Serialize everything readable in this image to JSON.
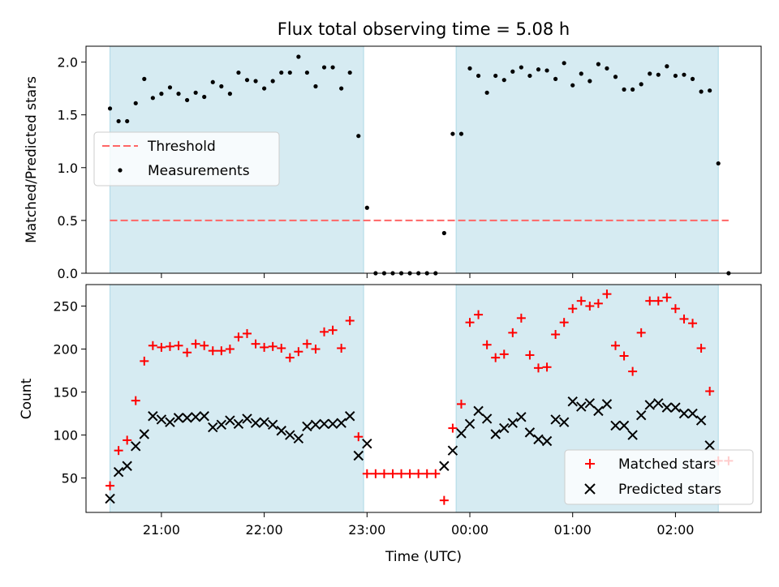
{
  "chart_data": [
    {
      "type": "scatter",
      "title": "Flux total observing time = 5.08 h",
      "xlabel": "",
      "ylabel": "Matched/Predicted stars",
      "xlim": [
        "20:16",
        "02:50"
      ],
      "ylim": [
        0,
        2.15
      ],
      "xticks": [
        "21:00",
        "22:00",
        "23:00",
        "00:00",
        "01:00",
        "02:00"
      ],
      "yticks": [
        "0.0",
        "0.5",
        "1.0",
        "1.5",
        "2.0"
      ],
      "shaded_intervals": [
        [
          "20:30",
          "22:58"
        ],
        [
          "23:52",
          "02:25"
        ]
      ],
      "threshold": {
        "name": "Threshold",
        "value": 0.5,
        "color": "#ff6666",
        "x_range": [
          "20:30",
          "02:31"
        ]
      },
      "series": [
        {
          "name": "Measurements",
          "color": "#000000",
          "points": [
            [
              "20:30",
              1.56
            ],
            [
              "20:35",
              1.44
            ],
            [
              "20:40",
              1.44
            ],
            [
              "20:45",
              1.61
            ],
            [
              "20:50",
              1.84
            ],
            [
              "20:55",
              1.66
            ],
            [
              "21:00",
              1.7
            ],
            [
              "21:05",
              1.76
            ],
            [
              "21:10",
              1.7
            ],
            [
              "21:15",
              1.64
            ],
            [
              "21:20",
              1.71
            ],
            [
              "21:25",
              1.67
            ],
            [
              "21:30",
              1.81
            ],
            [
              "21:35",
              1.77
            ],
            [
              "21:40",
              1.7
            ],
            [
              "21:45",
              1.9
            ],
            [
              "21:50",
              1.83
            ],
            [
              "21:55",
              1.82
            ],
            [
              "22:00",
              1.75
            ],
            [
              "22:05",
              1.82
            ],
            [
              "22:10",
              1.9
            ],
            [
              "22:15",
              1.9
            ],
            [
              "22:20",
              2.05
            ],
            [
              "22:25",
              1.9
            ],
            [
              "22:30",
              1.77
            ],
            [
              "22:35",
              1.95
            ],
            [
              "22:40",
              1.95
            ],
            [
              "22:45",
              1.75
            ],
            [
              "22:50",
              1.9
            ],
            [
              "22:55",
              1.3
            ],
            [
              "23:00",
              0.62
            ],
            [
              "23:05",
              0.0
            ],
            [
              "23:10",
              0.0
            ],
            [
              "23:15",
              0.0
            ],
            [
              "23:20",
              0.0
            ],
            [
              "23:25",
              0.0
            ],
            [
              "23:30",
              0.0
            ],
            [
              "23:35",
              0.0
            ],
            [
              "23:40",
              0.0
            ],
            [
              "23:45",
              0.38
            ],
            [
              "23:50",
              1.32
            ],
            [
              "23:55",
              1.32
            ],
            [
              "00:00",
              1.94
            ],
            [
              "00:05",
              1.87
            ],
            [
              "00:10",
              1.71
            ],
            [
              "00:15",
              1.87
            ],
            [
              "00:20",
              1.83
            ],
            [
              "00:25",
              1.91
            ],
            [
              "00:30",
              1.95
            ],
            [
              "00:35",
              1.87
            ],
            [
              "00:40",
              1.93
            ],
            [
              "00:45",
              1.92
            ],
            [
              "00:50",
              1.84
            ],
            [
              "00:55",
              1.99
            ],
            [
              "01:00",
              1.78
            ],
            [
              "01:05",
              1.89
            ],
            [
              "01:10",
              1.82
            ],
            [
              "01:15",
              1.98
            ],
            [
              "01:20",
              1.94
            ],
            [
              "01:25",
              1.86
            ],
            [
              "01:30",
              1.74
            ],
            [
              "01:35",
              1.74
            ],
            [
              "01:40",
              1.79
            ],
            [
              "01:45",
              1.89
            ],
            [
              "01:50",
              1.88
            ],
            [
              "01:55",
              1.96
            ],
            [
              "02:00",
              1.87
            ],
            [
              "02:05",
              1.88
            ],
            [
              "02:10",
              1.84
            ],
            [
              "02:15",
              1.72
            ],
            [
              "02:20",
              1.73
            ],
            [
              "02:25",
              1.04
            ],
            [
              "02:31",
              0.0
            ]
          ]
        }
      ],
      "legend": {
        "position": "center-left",
        "entries": [
          "Threshold",
          "Measurements"
        ]
      }
    },
    {
      "type": "scatter",
      "title": "",
      "xlabel": "Time (UTC)",
      "ylabel": "Count",
      "xlim": [
        "20:16",
        "02:50"
      ],
      "ylim": [
        10,
        275
      ],
      "xticks": [
        "21:00",
        "22:00",
        "23:00",
        "00:00",
        "01:00",
        "02:00"
      ],
      "yticks": [
        "50",
        "100",
        "150",
        "200",
        "250"
      ],
      "shaded_intervals": [
        [
          "20:30",
          "22:58"
        ],
        [
          "23:52",
          "02:25"
        ]
      ],
      "series": [
        {
          "name": "Matched stars",
          "color": "#ff0000",
          "marker": "plus",
          "points": [
            [
              "20:30",
              41
            ],
            [
              "20:35",
              82
            ],
            [
              "20:40",
              94
            ],
            [
              "20:45",
              140
            ],
            [
              "20:50",
              186
            ],
            [
              "20:55",
              204
            ],
            [
              "21:00",
              202
            ],
            [
              "21:05",
              203
            ],
            [
              "21:10",
              204
            ],
            [
              "21:15",
              196
            ],
            [
              "21:20",
              206
            ],
            [
              "21:25",
              204
            ],
            [
              "21:30",
              198
            ],
            [
              "21:35",
              198
            ],
            [
              "21:40",
              200
            ],
            [
              "21:45",
              214
            ],
            [
              "21:50",
              218
            ],
            [
              "21:55",
              206
            ],
            [
              "22:00",
              202
            ],
            [
              "22:05",
              203
            ],
            [
              "22:10",
              201
            ],
            [
              "22:15",
              190
            ],
            [
              "22:20",
              197
            ],
            [
              "22:25",
              206
            ],
            [
              "22:30",
              200
            ],
            [
              "22:35",
              220
            ],
            [
              "22:40",
              222
            ],
            [
              "22:45",
              201
            ],
            [
              "22:50",
              233
            ],
            [
              "22:55",
              98
            ],
            [
              "23:00",
              55
            ],
            [
              "23:05",
              55
            ],
            [
              "23:10",
              55
            ],
            [
              "23:15",
              55
            ],
            [
              "23:20",
              55
            ],
            [
              "23:25",
              55
            ],
            [
              "23:30",
              55
            ],
            [
              "23:35",
              55
            ],
            [
              "23:40",
              55
            ],
            [
              "23:45",
              24
            ],
            [
              "23:50",
              108
            ],
            [
              "23:55",
              136
            ],
            [
              "00:00",
              231
            ],
            [
              "00:05",
              240
            ],
            [
              "00:10",
              205
            ],
            [
              "00:15",
              190
            ],
            [
              "00:20",
              194
            ],
            [
              "00:25",
              219
            ],
            [
              "00:30",
              236
            ],
            [
              "00:35",
              193
            ],
            [
              "00:40",
              178
            ],
            [
              "00:45",
              179
            ],
            [
              "00:50",
              217
            ],
            [
              "00:55",
              231
            ],
            [
              "01:00",
              247
            ],
            [
              "01:05",
              256
            ],
            [
              "01:10",
              250
            ],
            [
              "01:15",
              253
            ],
            [
              "01:20",
              264
            ],
            [
              "01:25",
              204
            ],
            [
              "01:30",
              192
            ],
            [
              "01:35",
              174
            ],
            [
              "01:40",
              219
            ],
            [
              "01:45",
              256
            ],
            [
              "01:50",
              256
            ],
            [
              "01:55",
              260
            ],
            [
              "02:00",
              247
            ],
            [
              "02:05",
              235
            ],
            [
              "02:10",
              230
            ],
            [
              "02:15",
              201
            ],
            [
              "02:20",
              151
            ],
            [
              "02:25",
              70
            ],
            [
              "02:31",
              70
            ]
          ]
        },
        {
          "name": "Predicted stars",
          "color": "#000000",
          "marker": "x",
          "points": [
            [
              "20:30",
              26
            ],
            [
              "20:35",
              57
            ],
            [
              "20:40",
              64
            ],
            [
              "20:45",
              87
            ],
            [
              "20:50",
              101
            ],
            [
              "20:55",
              122
            ],
            [
              "21:00",
              118
            ],
            [
              "21:05",
              115
            ],
            [
              "21:10",
              120
            ],
            [
              "21:15",
              120
            ],
            [
              "21:20",
              121
            ],
            [
              "21:25",
              122
            ],
            [
              "21:30",
              109
            ],
            [
              "21:35",
              112
            ],
            [
              "21:40",
              117
            ],
            [
              "21:45",
              113
            ],
            [
              "21:50",
              119
            ],
            [
              "21:55",
              114
            ],
            [
              "22:00",
              115
            ],
            [
              "22:05",
              112
            ],
            [
              "22:10",
              105
            ],
            [
              "22:15",
              100
            ],
            [
              "22:20",
              96
            ],
            [
              "22:25",
              110
            ],
            [
              "22:30",
              112
            ],
            [
              "22:35",
              113
            ],
            [
              "22:40",
              113
            ],
            [
              "22:45",
              114
            ],
            [
              "22:50",
              122
            ],
            [
              "22:55",
              76
            ],
            [
              "23:00",
              90
            ],
            [
              "23:45",
              64
            ],
            [
              "23:50",
              82
            ],
            [
              "23:55",
              102
            ],
            [
              "00:00",
              113
            ],
            [
              "00:05",
              128
            ],
            [
              "00:10",
              119
            ],
            [
              "00:15",
              101
            ],
            [
              "00:20",
              108
            ],
            [
              "00:25",
              114
            ],
            [
              "00:30",
              121
            ],
            [
              "00:35",
              103
            ],
            [
              "00:40",
              95
            ],
            [
              "00:45",
              93
            ],
            [
              "00:50",
              118
            ],
            [
              "00:55",
              115
            ],
            [
              "01:00",
              139
            ],
            [
              "01:05",
              133
            ],
            [
              "01:10",
              137
            ],
            [
              "01:15",
              128
            ],
            [
              "01:20",
              136
            ],
            [
              "01:25",
              111
            ],
            [
              "01:30",
              111
            ],
            [
              "01:35",
              100
            ],
            [
              "01:40",
              123
            ],
            [
              "01:45",
              135
            ],
            [
              "01:50",
              137
            ],
            [
              "01:55",
              132
            ],
            [
              "02:00",
              132
            ],
            [
              "02:05",
              125
            ],
            [
              "02:10",
              125
            ],
            [
              "02:15",
              117
            ],
            [
              "02:20",
              88
            ]
          ]
        }
      ],
      "legend": {
        "position": "lower-right",
        "entries": [
          "Matched stars",
          "Predicted stars"
        ]
      }
    }
  ],
  "colors": {
    "shade": "#add8e6",
    "threshold": "#ff6666",
    "matched": "#ff0000",
    "predicted": "#000000"
  }
}
